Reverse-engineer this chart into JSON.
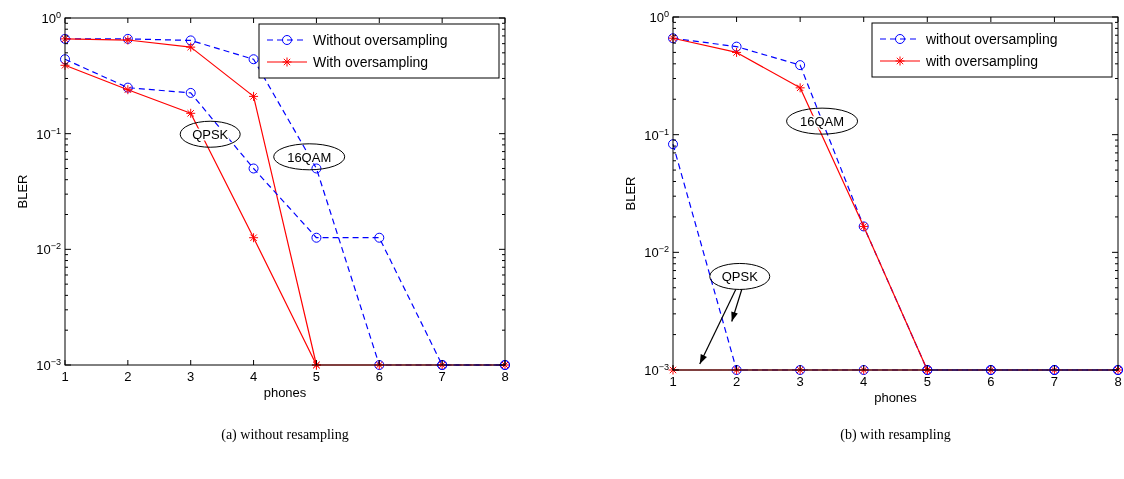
{
  "chart_data": [
    {
      "type": "line",
      "xlabel": "phones",
      "ylabel": "BLER",
      "log": "y",
      "xlim": [
        1,
        8
      ],
      "xticks": [
        1,
        2,
        3,
        4,
        5,
        6,
        7,
        8
      ],
      "ylim": [
        0.001,
        1
      ],
      "yticks": [
        {
          "value": 1,
          "label": "10$^{0}$"
        },
        {
          "value": 0.1,
          "label": "10$^{−1}$"
        },
        {
          "value": 0.01,
          "label": "10$^{−2}$"
        },
        {
          "value": 0.001,
          "label": "10$^{−3}$"
        }
      ],
      "grid": false,
      "legend": "top right",
      "x": [
        1,
        2,
        3,
        4,
        5,
        6,
        7,
        8
      ],
      "series": [
        {
          "name": "Without oversampling",
          "color": "#0000ff",
          "marker": "circle",
          "line_style": "dashed",
          "values": [
            0.66,
            0.66,
            0.64,
            0.44,
            0.05,
            0.001,
            0.001,
            0.001
          ]
        },
        {
          "name": "With oversampling",
          "color": "#ff0000",
          "marker": "cross",
          "line_style": "solid",
          "values": [
            0.66,
            0.645,
            0.56,
            0.21,
            0.001,
            0.001,
            0.001,
            0.001
          ]
        },
        {
          "color": "#0000ff",
          "marker": "circle",
          "line_style": "dashed",
          "values": [
            0.44,
            0.25,
            0.225,
            0.05,
            0.0126,
            0.0126,
            0.001,
            0.001
          ]
        },
        {
          "color": "#ff0000",
          "marker": "cross",
          "line_style": "solid",
          "values": [
            0.39,
            0.24,
            0.15,
            0.0126,
            0.001,
            null,
            null,
            null
          ]
        }
      ],
      "annotations": [
        "QPSK",
        "16QAM",
        "(a)  without resampling"
      ]
    },
    {
      "type": "line",
      "xlabel": "phones",
      "ylabel": "BLER",
      "log": "y",
      "xlim": [
        1,
        8
      ],
      "xticks": [
        1,
        2,
        3,
        4,
        5,
        6,
        7,
        8
      ],
      "ylim": [
        0.001,
        1
      ],
      "yticks": [
        {
          "value": 1,
          "label": "10$^{0}$"
        },
        {
          "value": 0.1,
          "label": "10$^{−1}$"
        },
        {
          "value": 0.01,
          "label": "10$^{−2}$"
        },
        {
          "value": 0.001,
          "label": "10$^{−3}$"
        }
      ],
      "grid": false,
      "legend": "top right",
      "x": [
        1,
        2,
        3,
        4,
        5,
        6,
        7,
        8
      ],
      "series": [
        {
          "name": "without oversampling",
          "color": "#0000ff",
          "marker": "circle",
          "line_style": "dashed",
          "values": [
            0.66,
            0.56,
            0.39,
            0.0166,
            0.001,
            0.001,
            0.001,
            0.001
          ]
        },
        {
          "name": "with oversampling",
          "color": "#ff0000",
          "marker": "cross",
          "line_style": "solid",
          "values": [
            0.66,
            0.5,
            0.25,
            0.0166,
            0.001,
            0.001,
            0.001,
            0.001
          ]
        },
        {
          "color": "#0000ff",
          "marker": "circle",
          "line_style": "dashed",
          "values": [
            0.083,
            0.001,
            0.001,
            0.001,
            0.001,
            0.001,
            0.001,
            0.001
          ]
        },
        {
          "color": "#ff0000",
          "marker": "cross",
          "line_style": "solid",
          "values": [
            0.001,
            0.001,
            0.001,
            0.001,
            0.001,
            null,
            null,
            null
          ]
        }
      ],
      "annotations": [
        "16QAM",
        "QPSK",
        "(b)  with resampling"
      ]
    }
  ]
}
